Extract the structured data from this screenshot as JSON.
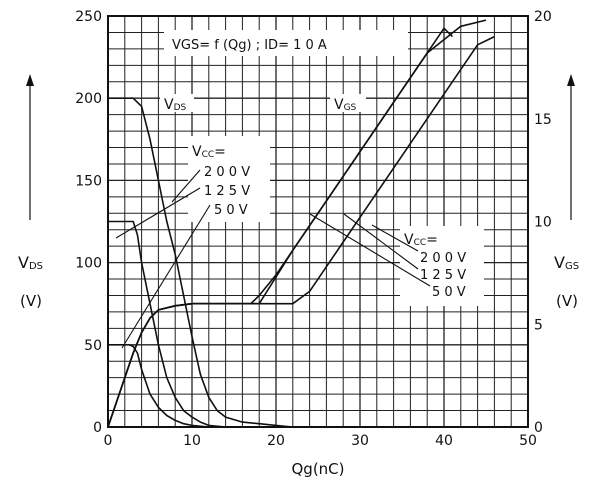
{
  "chart_data": {
    "type": "line",
    "title": "VGS= f (Qg) ; ID= 1 0 A",
    "xlabel": "Qg(nC)",
    "ylabel_left": {
      "main": "V",
      "sub": "DS",
      "unit": "(V)"
    },
    "ylabel_right": {
      "main": "V",
      "sub": "GS",
      "unit": "(V)"
    },
    "x_ticks": [
      "0",
      "10",
      "20",
      "30",
      "40",
      "50"
    ],
    "y_left_ticks": [
      "0",
      "50",
      "100",
      "150",
      "200",
      "250"
    ],
    "y_right_ticks": [
      "0",
      "5",
      "10",
      "15",
      "20"
    ],
    "xlim": [
      0,
      50
    ],
    "ylim_left": [
      0,
      250
    ],
    "ylim_right": [
      0,
      20
    ],
    "grid": true,
    "annotations": {
      "vds_curve_label": {
        "main": "V",
        "sub": "DS"
      },
      "vgs_curve_label": {
        "main": "V",
        "sub": "GS"
      },
      "vcc_header": {
        "main": "V",
        "sub": "CC",
        "suffix": "="
      },
      "vcc_values": [
        "2 0 0 V",
        "1 2 5 V",
        "5 0 V"
      ]
    },
    "series": [
      {
        "axis": "left",
        "group": "VDS",
        "vcc": "200 V",
        "x": [
          0,
          3,
          4,
          5,
          6,
          7,
          8,
          9,
          10,
          11,
          12,
          13,
          14,
          16,
          18,
          20,
          22
        ],
        "y": [
          200,
          200,
          195,
          175,
          150,
          125,
          105,
          80,
          55,
          32,
          18,
          10,
          6,
          3,
          2,
          1,
          0
        ]
      },
      {
        "axis": "left",
        "group": "VDS",
        "vcc": "125 V",
        "x": [
          0,
          3,
          3.5,
          4,
          5,
          6,
          7,
          8,
          9,
          10,
          11,
          12,
          14
        ],
        "y": [
          125,
          125,
          117,
          100,
          75,
          50,
          30,
          18,
          10,
          6,
          3,
          1,
          0
        ]
      },
      {
        "axis": "left",
        "group": "VDS",
        "vcc": "50 V",
        "x": [
          0,
          2.5,
          3,
          3.5,
          4,
          5,
          6,
          7,
          8,
          9,
          10,
          12
        ],
        "y": [
          50,
          50,
          49,
          45,
          35,
          20,
          12,
          7,
          4,
          2,
          1,
          0
        ]
      },
      {
        "axis": "right",
        "group": "VGS",
        "vcc": "200 V",
        "x": [
          0,
          2,
          3,
          4,
          5,
          6,
          8,
          10,
          12,
          22,
          24,
          26,
          28,
          32,
          36,
          40,
          44,
          46
        ],
        "y": [
          0,
          2.4,
          3.6,
          4.6,
          5.3,
          5.7,
          5.9,
          6.0,
          6.0,
          6.0,
          6.6,
          7.8,
          9.0,
          11.4,
          13.8,
          16.2,
          18.6,
          19.0
        ]
      },
      {
        "axis": "right",
        "group": "VGS",
        "vcc": "125 V",
        "x": [
          0,
          2,
          3,
          4,
          5,
          6,
          8,
          10,
          12,
          13,
          16,
          18,
          22,
          26,
          30,
          34,
          38,
          42,
          45
        ],
        "y": [
          0,
          2.4,
          3.6,
          4.6,
          5.3,
          5.7,
          5.9,
          6.0,
          6.0,
          6.0,
          6.0,
          6.0,
          8.6,
          11.0,
          13.4,
          15.8,
          18.2,
          19.5,
          19.8
        ]
      },
      {
        "axis": "right",
        "group": "VGS",
        "vcc": "50 V",
        "x": [
          0,
          2,
          3,
          4,
          5,
          6,
          8,
          10,
          12,
          14,
          17,
          18,
          20,
          24,
          28,
          32,
          36,
          40,
          41
        ],
        "y": [
          0,
          2.4,
          3.6,
          4.6,
          5.3,
          5.7,
          5.9,
          6.0,
          6.0,
          6.0,
          6.0,
          6.4,
          7.4,
          9.8,
          12.2,
          14.6,
          17.0,
          19.4,
          19.0
        ]
      }
    ]
  }
}
